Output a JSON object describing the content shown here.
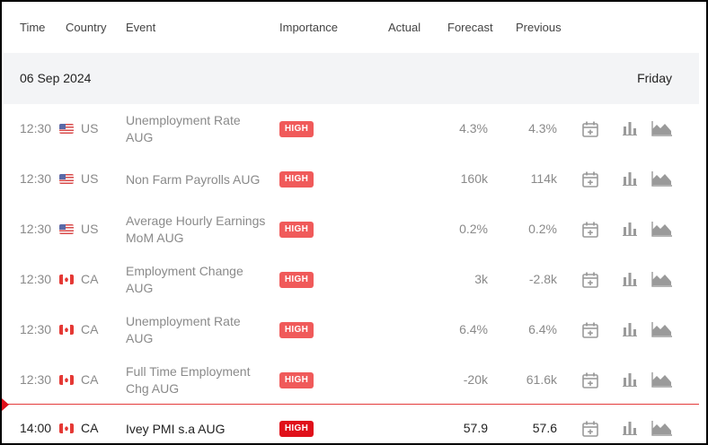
{
  "header": {
    "time": "Time",
    "country": "Country",
    "event": "Event",
    "importance": "Importance",
    "actual": "Actual",
    "forecast": "Forecast",
    "previous": "Previous"
  },
  "date_row": {
    "date": "06 Sep 2024",
    "weekday": "Friday"
  },
  "colors": {
    "high_badge": "#f05a5a",
    "high_badge_current": "#e0101a",
    "current_line": "#e43b3b"
  },
  "rows": [
    {
      "time": "12:30",
      "country": "US",
      "flag": "us-flag-icon",
      "event_line1": "Unemployment Rate",
      "event_line2": "AUG",
      "importance": "HIGH",
      "actual": "",
      "forecast": "4.3%",
      "previous": "4.3%"
    },
    {
      "time": "12:30",
      "country": "US",
      "flag": "us-flag-icon",
      "event_line1": "Non Farm Payrolls AUG",
      "event_line2": "",
      "importance": "HIGH",
      "actual": "",
      "forecast": "160k",
      "previous": "114k"
    },
    {
      "time": "12:30",
      "country": "US",
      "flag": "us-flag-icon",
      "event_line1": "Average Hourly Earnings",
      "event_line2": "MoM AUG",
      "importance": "HIGH",
      "actual": "",
      "forecast": "0.2%",
      "previous": "0.2%"
    },
    {
      "time": "12:30",
      "country": "CA",
      "flag": "ca-flag-icon",
      "event_line1": "Employment Change",
      "event_line2": "AUG",
      "importance": "HIGH",
      "actual": "",
      "forecast": "3k",
      "previous": "-2.8k"
    },
    {
      "time": "12:30",
      "country": "CA",
      "flag": "ca-flag-icon",
      "event_line1": "Unemployment Rate",
      "event_line2": "AUG",
      "importance": "HIGH",
      "actual": "",
      "forecast": "6.4%",
      "previous": "6.4%"
    },
    {
      "time": "12:30",
      "country": "CA",
      "flag": "ca-flag-icon",
      "event_line1": "Full Time Employment",
      "event_line2": "Chg AUG",
      "importance": "HIGH",
      "actual": "",
      "forecast": "-20k",
      "previous": "61.6k"
    },
    {
      "time": "14:00",
      "country": "CA",
      "flag": "ca-flag-icon",
      "event_line1": "Ivey PMI s.a AUG",
      "event_line2": "",
      "importance": "HIGH",
      "actual": "",
      "forecast": "57.9",
      "previous": "57.6"
    }
  ]
}
